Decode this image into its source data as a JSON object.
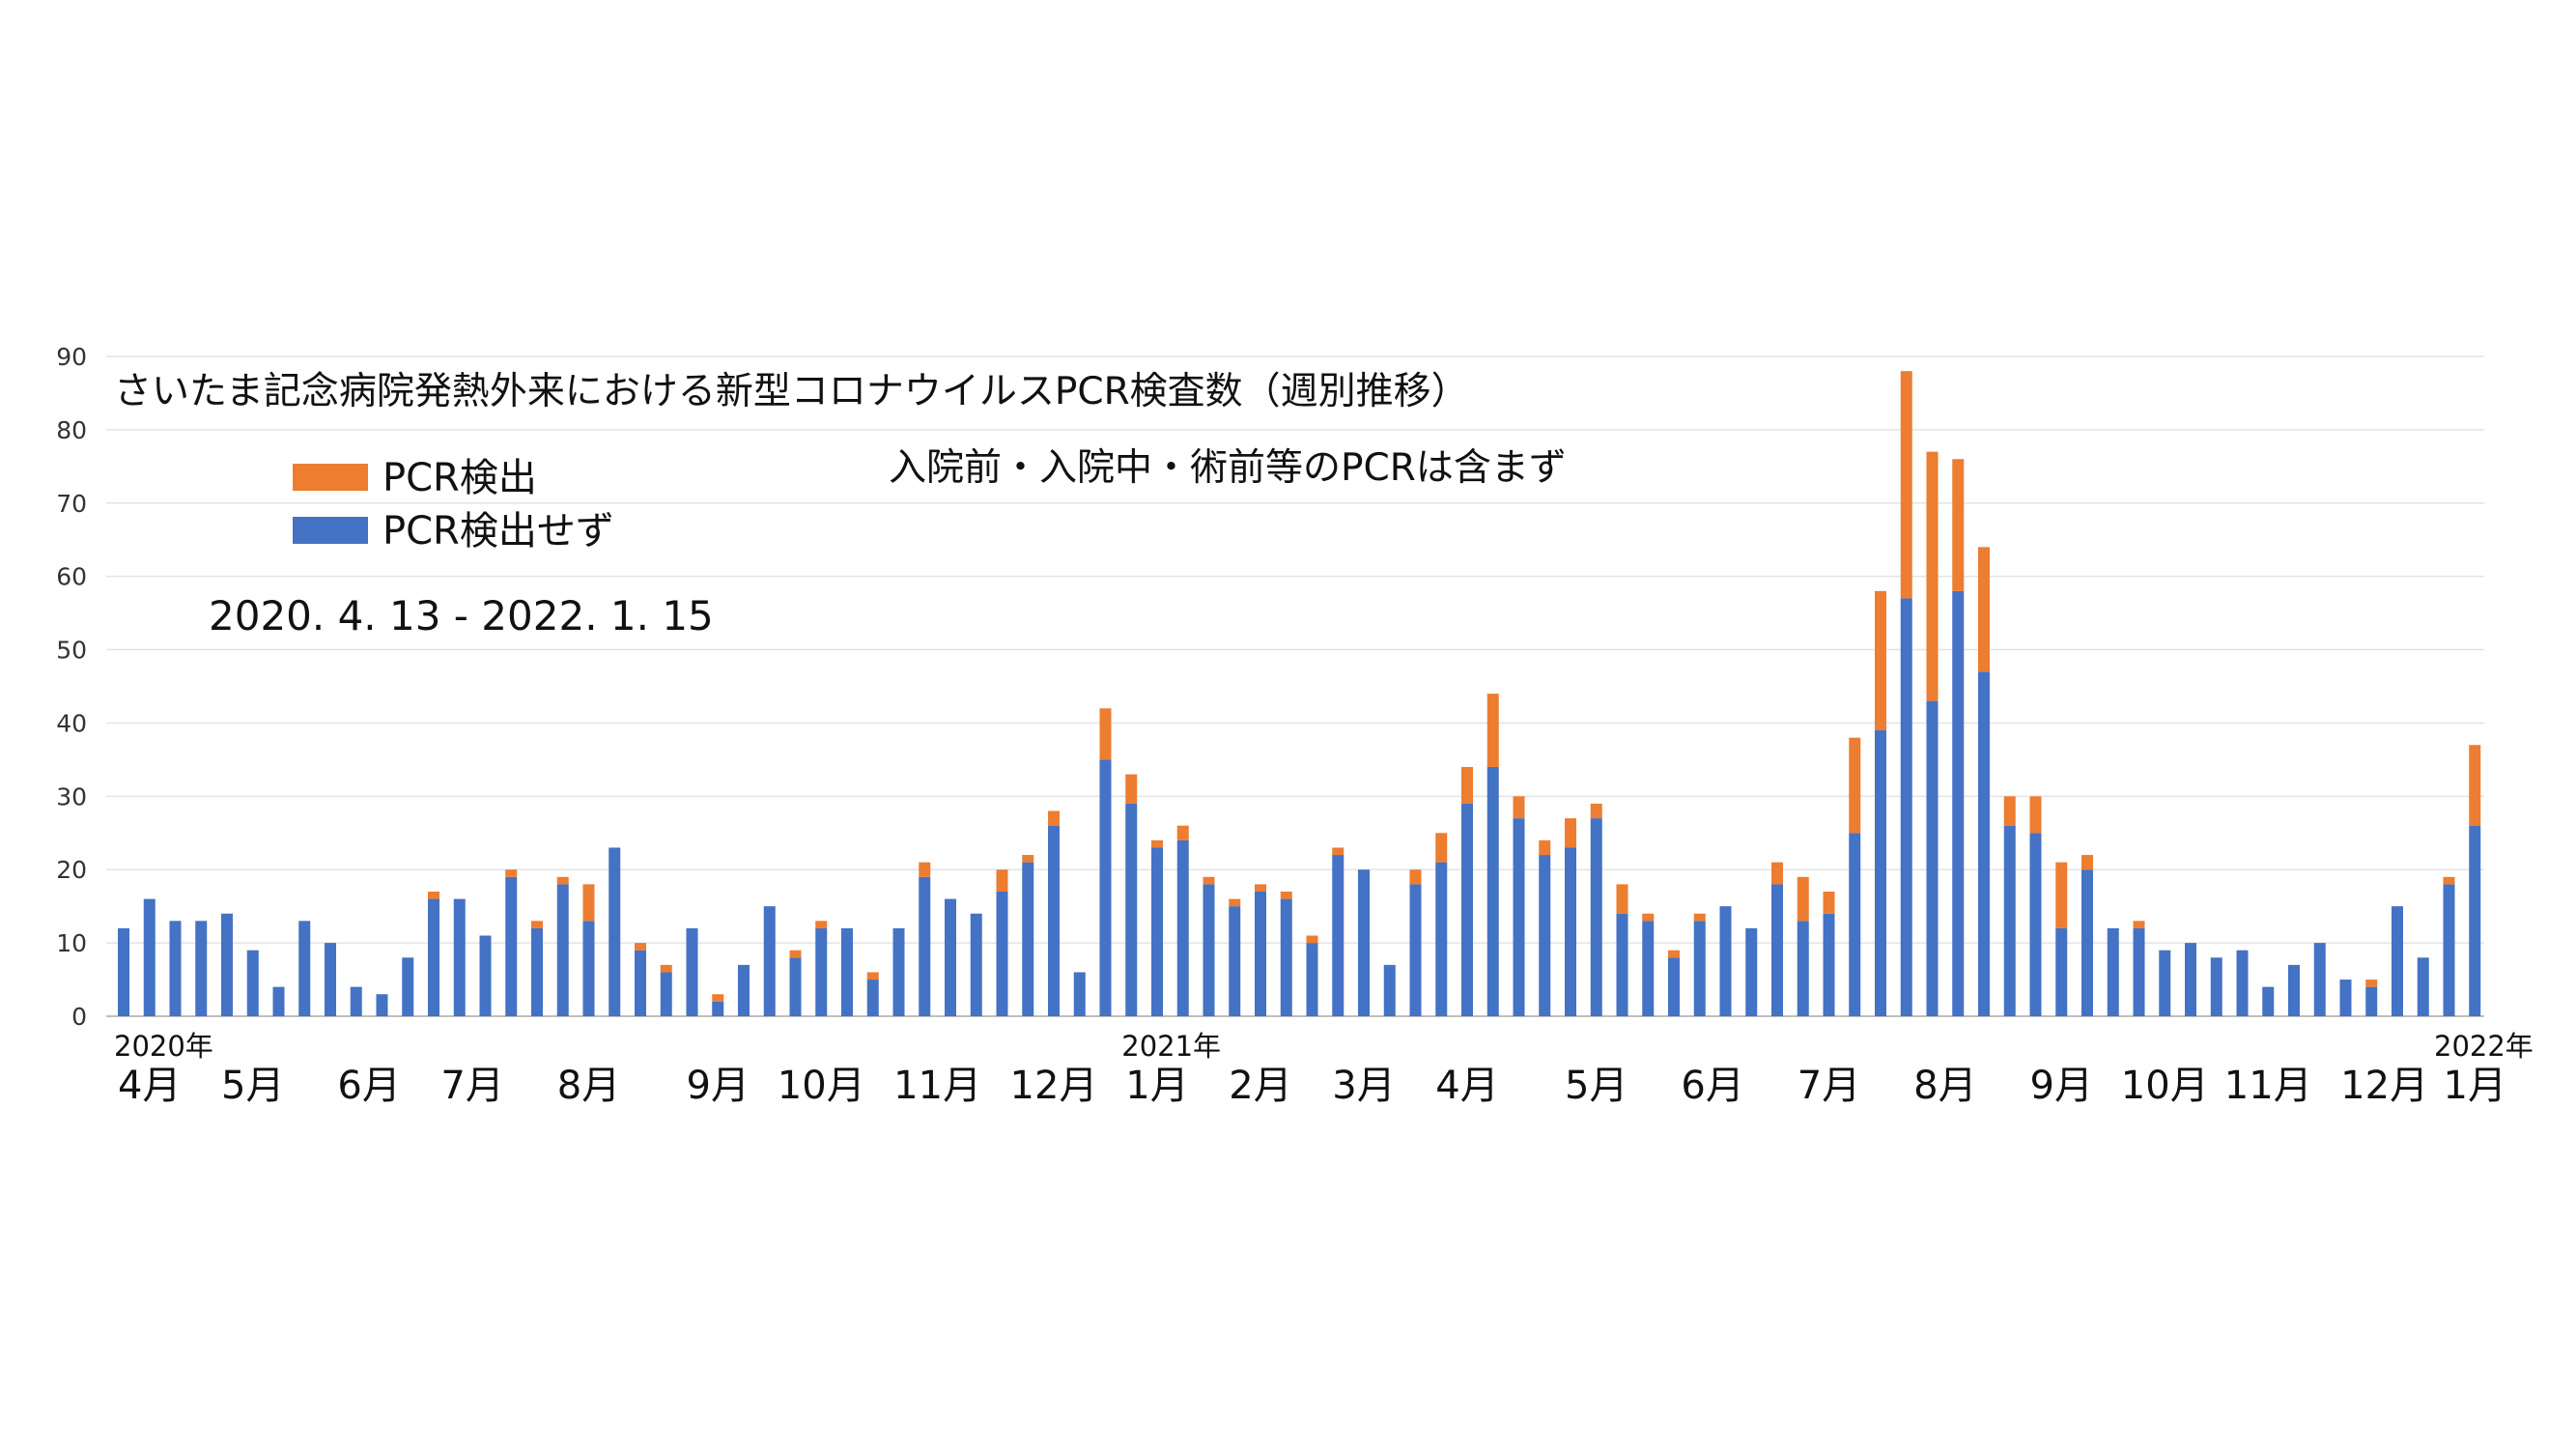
{
  "chart_data": {
    "type": "bar",
    "stacked": true,
    "title": "さいたま記念病院発熱外来における新型コロナウイルスPCR検査数（週別推移）",
    "subtitle": "入院前・入院中・術前等のPCRは含まず",
    "date_range": "2020. 4. 13 - 2022. 1. 15",
    "legend": [
      {
        "name": "PCR検出",
        "color": "#ED7D31"
      },
      {
        "name": "PCR検出せず",
        "color": "#4472C4"
      }
    ],
    "legend_placement": "top-left",
    "grid": true,
    "ylim": [
      0,
      90
    ],
    "yticks": [
      "0",
      "10",
      "20",
      "30",
      "40",
      "50",
      "60",
      "70",
      "80",
      "90"
    ],
    "x_year_labels": [
      {
        "label": "2020年",
        "week": 0
      },
      {
        "label": "2021年",
        "week": 39
      },
      {
        "label": "2022年",
        "week": 91
      }
    ],
    "x_month_labels": [
      {
        "label": "4月",
        "week": 1
      },
      {
        "label": "5月",
        "week": 5
      },
      {
        "label": "6月",
        "week": 9.5
      },
      {
        "label": "7月",
        "week": 13.5
      },
      {
        "label": "8月",
        "week": 18
      },
      {
        "label": "9月",
        "week": 23
      },
      {
        "label": "10月",
        "week": 27
      },
      {
        "label": "11月",
        "week": 31.5
      },
      {
        "label": "12月",
        "week": 36
      },
      {
        "label": "1月",
        "week": 40
      },
      {
        "label": "2月",
        "week": 44
      },
      {
        "label": "3月",
        "week": 48
      },
      {
        "label": "4月",
        "week": 52
      },
      {
        "label": "5月",
        "week": 57
      },
      {
        "label": "6月",
        "week": 61.5
      },
      {
        "label": "7月",
        "week": 66
      },
      {
        "label": "8月",
        "week": 70.5
      },
      {
        "label": "9月",
        "week": 75
      },
      {
        "label": "10月",
        "week": 79
      },
      {
        "label": "11月",
        "week": 83
      },
      {
        "label": "12月",
        "week": 87.5
      },
      {
        "label": "1月",
        "week": 91
      }
    ],
    "series": [
      {
        "name": "PCR検出せず",
        "values": [
          12,
          16,
          13,
          13,
          14,
          9,
          4,
          13,
          10,
          4,
          3,
          8,
          16,
          16,
          11,
          19,
          12,
          18,
          13,
          23,
          9,
          6,
          12,
          2,
          7,
          15,
          8,
          12,
          12,
          5,
          12,
          19,
          16,
          14,
          17,
          21,
          26,
          6,
          35,
          29,
          23,
          24,
          18,
          15,
          17,
          16,
          10,
          22,
          20,
          7,
          18,
          21,
          29,
          34,
          27,
          22,
          23,
          27,
          14,
          13,
          8,
          13,
          15,
          12,
          18,
          13,
          14,
          25,
          39,
          57,
          43,
          58,
          47,
          26,
          25,
          12,
          20,
          12,
          12,
          9,
          10,
          8,
          9,
          4,
          7,
          10,
          5,
          4,
          15,
          8,
          18,
          26
        ]
      },
      {
        "name": "PCR検出",
        "values": [
          0,
          0,
          0,
          0,
          0,
          0,
          0,
          0,
          0,
          0,
          0,
          0,
          1,
          0,
          0,
          1,
          1,
          1,
          5,
          0,
          1,
          1,
          0,
          1,
          0,
          0,
          1,
          1,
          0,
          1,
          0,
          2,
          0,
          0,
          3,
          1,
          2,
          0,
          7,
          4,
          1,
          2,
          1,
          1,
          1,
          1,
          1,
          1,
          0,
          0,
          2,
          4,
          5,
          10,
          3,
          2,
          4,
          2,
          4,
          1,
          1,
          1,
          0,
          0,
          3,
          6,
          3,
          13,
          19,
          31,
          34,
          18,
          17,
          4,
          5,
          9,
          2,
          0,
          1,
          0,
          0,
          0,
          0,
          0,
          0,
          0,
          0,
          1,
          0,
          0,
          1,
          11
        ]
      }
    ]
  }
}
